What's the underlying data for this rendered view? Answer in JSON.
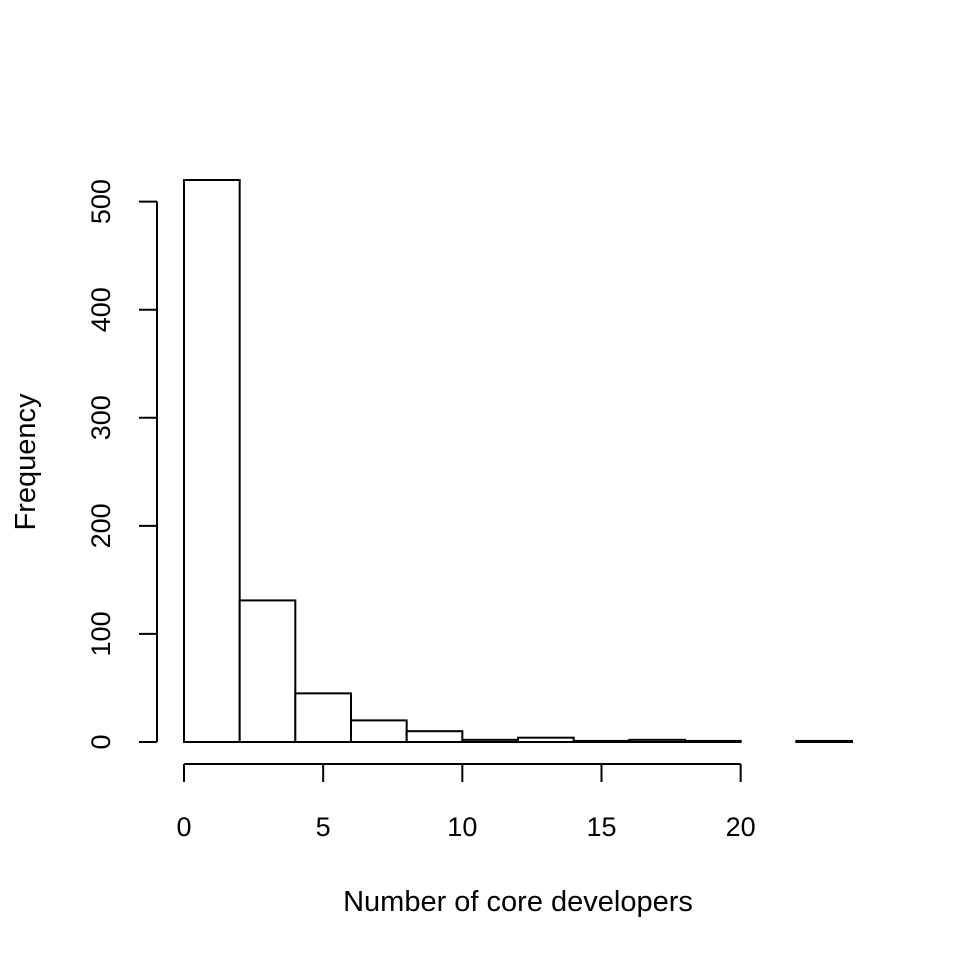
{
  "chart_data": {
    "type": "bar",
    "title": "",
    "xlabel": "Number of core developers",
    "ylabel": "Frequency",
    "bins": [
      {
        "start": 0,
        "end": 2,
        "count": 520
      },
      {
        "start": 2,
        "end": 4,
        "count": 131
      },
      {
        "start": 4,
        "end": 6,
        "count": 45
      },
      {
        "start": 6,
        "end": 8,
        "count": 20
      },
      {
        "start": 8,
        "end": 10,
        "count": 10
      },
      {
        "start": 10,
        "end": 12,
        "count": 2
      },
      {
        "start": 12,
        "end": 14,
        "count": 4
      },
      {
        "start": 14,
        "end": 16,
        "count": 1
      },
      {
        "start": 16,
        "end": 18,
        "count": 2
      },
      {
        "start": 18,
        "end": 20,
        "count": 1
      },
      {
        "start": 20,
        "end": 22,
        "count": 0
      },
      {
        "start": 22,
        "end": 24,
        "count": 1
      }
    ],
    "xlim": [
      0,
      24
    ],
    "ylim": [
      0,
      520
    ],
    "x_ticks": [
      0,
      5,
      10,
      15,
      20
    ],
    "x_tick_labels": [
      "0",
      "5",
      "10",
      "15",
      "20"
    ],
    "y_ticks": [
      0,
      100,
      200,
      300,
      400,
      500
    ],
    "y_tick_labels": [
      "0",
      "100",
      "200",
      "300",
      "400",
      "500"
    ],
    "grid": false,
    "legend": "none",
    "colors": {
      "bar_fill": "#ffffff",
      "bar_stroke": "#000000",
      "axis": "#000000"
    }
  }
}
